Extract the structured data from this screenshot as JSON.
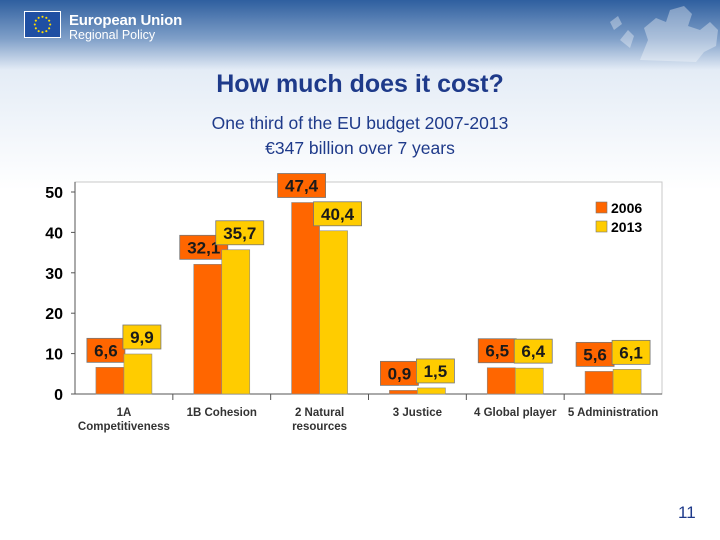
{
  "header": {
    "org_name": "European Union",
    "org_subtitle": "Regional Policy",
    "flag_icon": "eu-flag-icon",
    "map_icon": "europe-map-icon"
  },
  "slide": {
    "title": "How much does it cost?",
    "subtitle_line1": "One third of the EU budget 2007-2013",
    "subtitle_line2": "€347 billion over 7 years",
    "page_number": "11"
  },
  "colors": {
    "series_2006": "#ff6600",
    "series_2013": "#ffcc00",
    "title": "#1e3a8a"
  },
  "chart_data": {
    "type": "bar",
    "title": "",
    "xlabel": "",
    "ylabel": "",
    "ylim": [
      0,
      50
    ],
    "yticks": [
      "0",
      "10",
      "20",
      "30",
      "40",
      "50"
    ],
    "categories": [
      [
        "1A",
        "Competitiveness"
      ],
      [
        "1B Cohesion"
      ],
      [
        "2 Natural",
        "resources"
      ],
      [
        "3 Justice"
      ],
      [
        "4 Global player"
      ],
      [
        "5 Administration"
      ]
    ],
    "legend_position": "top-right",
    "series": [
      {
        "name": "2006",
        "color": "#ff6600",
        "values": [
          6.6,
          32.1,
          47.4,
          0.9,
          6.5,
          5.6
        ],
        "labels": [
          "6,6",
          "32,1",
          "47,4",
          "0,9",
          "6,5",
          "5,6"
        ]
      },
      {
        "name": "2013",
        "color": "#ffcc00",
        "values": [
          9.9,
          35.7,
          40.4,
          1.5,
          6.4,
          6.1
        ],
        "labels": [
          "9,9",
          "35,7",
          "40,4",
          "1,5",
          "6,4",
          "6,1"
        ]
      }
    ]
  }
}
